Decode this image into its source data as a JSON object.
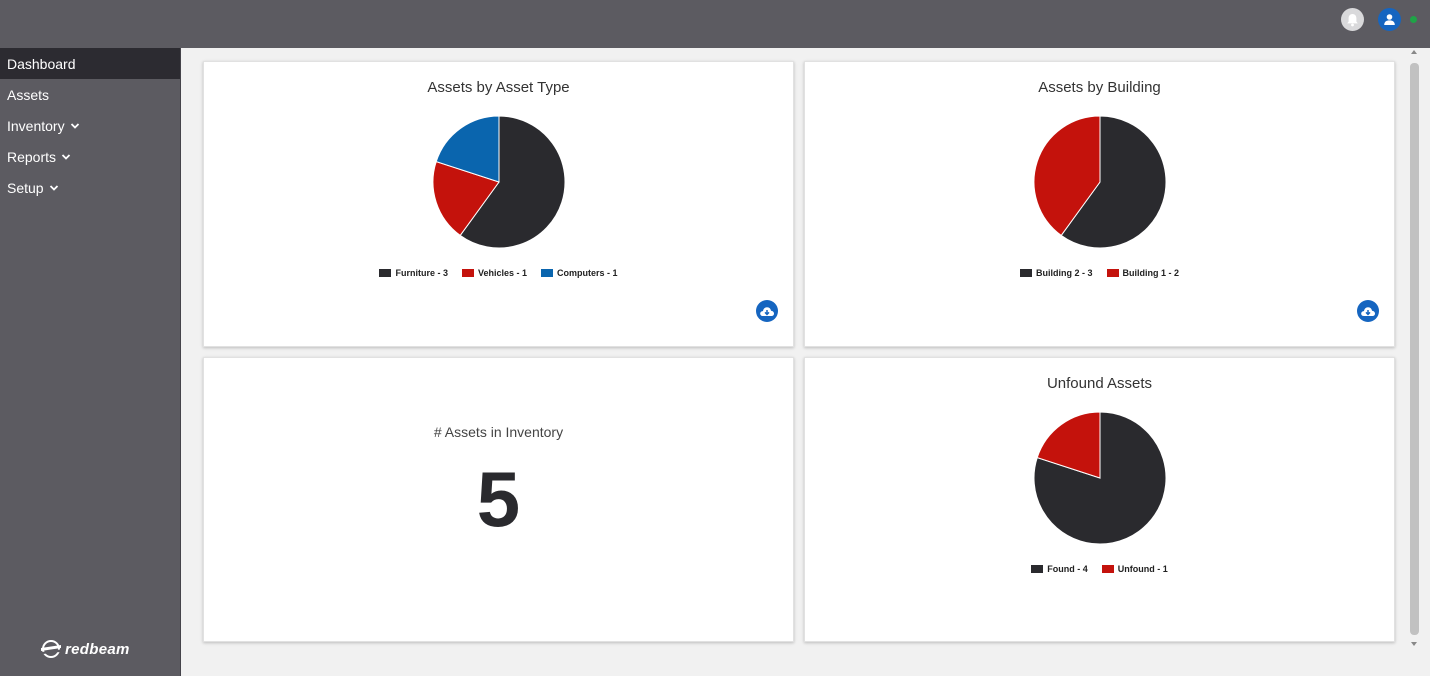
{
  "header": {
    "bell_icon": "bell-icon",
    "user_icon": "user-avatar-icon",
    "status_color": "#1fa347"
  },
  "sidebar": {
    "items": [
      {
        "label": "Dashboard",
        "active": true
      },
      {
        "label": "Assets"
      },
      {
        "label": "Inventory",
        "has_dropdown": true
      },
      {
        "label": "Reports",
        "has_dropdown": true
      },
      {
        "label": "Setup",
        "has_dropdown": true
      }
    ],
    "logo": "redbeam"
  },
  "colors": {
    "dark": "#2a2a2e",
    "red": "#c4120c",
    "blue": "#0a65ae",
    "accent": "#1565c0"
  },
  "cards": {
    "asset_type": {
      "title": "Assets by Asset Type",
      "download_icon": "cloud-download-icon",
      "legend": [
        "Furniture - 3",
        "Vehicles - 1",
        "Computers - 1"
      ]
    },
    "building": {
      "title": "Assets by Building",
      "download_icon": "cloud-download-icon",
      "legend": [
        "Building 2 - 3",
        "Building 1 - 2"
      ]
    },
    "inventory": {
      "label": "# Assets in Inventory",
      "value": "5"
    },
    "unfound": {
      "title": "Unfound Assets",
      "legend": [
        "Found - 4",
        "Unfound - 1"
      ]
    }
  },
  "chart_data": [
    {
      "type": "pie",
      "title": "Assets by Asset Type",
      "categories": [
        "Furniture",
        "Vehicles",
        "Computers"
      ],
      "values": [
        3,
        1,
        1
      ],
      "colors": [
        "#2a2a2e",
        "#c4120c",
        "#0a65ae"
      ],
      "legend": "bottom"
    },
    {
      "type": "pie",
      "title": "Assets by Building",
      "categories": [
        "Building 2",
        "Building 1"
      ],
      "values": [
        3,
        2
      ],
      "colors": [
        "#2a2a2e",
        "#c4120c"
      ],
      "legend": "bottom"
    },
    {
      "type": "pie",
      "title": "Unfound Assets",
      "categories": [
        "Found",
        "Unfound"
      ],
      "values": [
        4,
        1
      ],
      "colors": [
        "#2a2a2e",
        "#c4120c"
      ],
      "legend": "bottom"
    }
  ]
}
